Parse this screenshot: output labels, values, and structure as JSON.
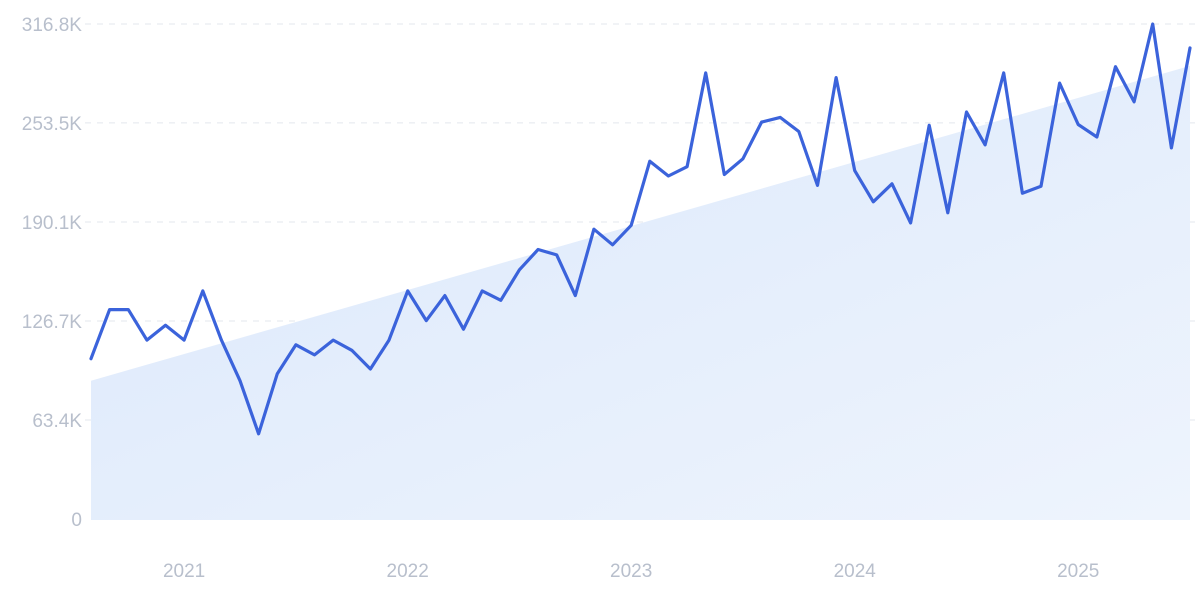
{
  "chart_data": {
    "type": "line",
    "title": "",
    "xlabel": "",
    "ylabel": "",
    "ylim": [
      0,
      316.8
    ],
    "y_unit": "K",
    "yticks": [
      0,
      63.4,
      126.7,
      190.1,
      253.5,
      316.8
    ],
    "ytick_labels": [
      "0",
      "63.4K",
      "126.7K",
      "190.1K",
      "253.5K",
      "316.8K"
    ],
    "xtick_labels": [
      "2021",
      "2022",
      "2023",
      "2024",
      "2025"
    ],
    "xtick_dates": [
      "2021-01-01",
      "2022-01-01",
      "2023-01-01",
      "2024-01-01",
      "2025-01-01"
    ],
    "x_range": [
      "2020-08",
      "2025-07"
    ],
    "grid": "horizontal-dashed",
    "legend": "none",
    "colors": {
      "line": "#3b63db",
      "trend_fill": "#dbe8fb",
      "grid": "#e3e7ee",
      "tick_text": "#b8bfcc"
    },
    "trend": {
      "start": [
        "2020-08",
        88.5
      ],
      "end": [
        "2025-07",
        290.0
      ]
    },
    "series": [
      {
        "x": [
          "2020-08",
          "2020-09",
          "2020-10",
          "2020-11",
          "2020-12",
          "2021-01",
          "2021-02",
          "2021-03",
          "2021-04",
          "2021-05",
          "2021-06",
          "2021-07",
          "2021-08",
          "2021-09",
          "2021-10",
          "2021-11",
          "2021-12",
          "2022-01",
          "2022-02",
          "2022-03",
          "2022-04",
          "2022-05",
          "2022-06",
          "2022-07",
          "2022-08",
          "2022-09",
          "2022-10",
          "2022-11",
          "2022-12",
          "2023-01",
          "2023-02",
          "2023-03",
          "2023-04",
          "2023-05",
          "2023-06",
          "2023-07",
          "2023-08",
          "2023-09",
          "2023-10",
          "2023-11",
          "2023-12",
          "2024-01",
          "2024-02",
          "2024-03",
          "2024-04",
          "2024-05",
          "2024-06",
          "2024-07",
          "2024-08",
          "2024-09",
          "2024-10",
          "2024-11",
          "2024-12",
          "2025-01",
          "2025-02",
          "2025-03",
          "2025-04",
          "2025-05",
          "2025-06",
          "2025-07"
        ],
        "values": [
          102.6,
          134.0,
          134.0,
          114.5,
          124.0,
          114.5,
          146.0,
          114.5,
          88.5,
          54.5,
          93.0,
          111.5,
          105.0,
          114.5,
          108.0,
          96.0,
          114.5,
          146.0,
          127.0,
          143.0,
          121.5,
          146.0,
          140.0,
          159.5,
          172.5,
          169.0,
          143.0,
          185.5,
          175.5,
          188.0,
          229.0,
          219.5,
          225.5,
          285.5,
          220.5,
          230.5,
          254.0,
          257.0,
          248.0,
          213.5,
          282.5,
          223.0,
          203.0,
          214.5,
          189.5,
          252.0,
          196.0,
          260.5,
          239.5,
          285.5,
          208.5,
          213.0,
          279.0,
          252.5,
          244.5,
          289.5,
          267.0,
          316.8,
          237.5,
          301.5
        ]
      }
    ]
  }
}
